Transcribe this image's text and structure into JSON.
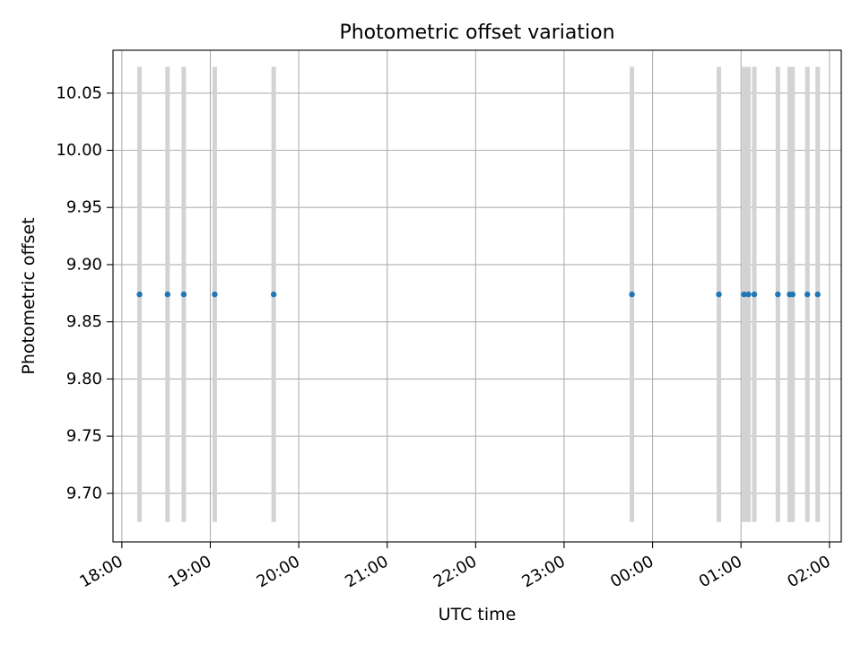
{
  "chart_data": {
    "type": "scatter",
    "title": "Photometric offset variation",
    "xlabel": "UTC time",
    "ylabel": "Photometric offset",
    "xlim": [
      "17:54",
      "02:08"
    ],
    "ylim": [
      9.6575,
      10.0875
    ],
    "x_ticks": [
      "18:00",
      "19:00",
      "20:00",
      "21:00",
      "22:00",
      "23:00",
      "00:00",
      "01:00",
      "02:00"
    ],
    "y_ticks": [
      "9.70",
      "9.75",
      "9.80",
      "9.85",
      "9.90",
      "9.95",
      "10.00",
      "10.05"
    ],
    "grid": true,
    "error_bars": {
      "color": "#d3d3d3",
      "low": 9.675,
      "high": 10.073
    },
    "marker_color": "#1f77b4",
    "points": [
      {
        "x": "18:12",
        "y": 9.874
      },
      {
        "x": "18:31",
        "y": 9.874
      },
      {
        "x": "18:42",
        "y": 9.874
      },
      {
        "x": "19:03",
        "y": 9.874
      },
      {
        "x": "19:43",
        "y": 9.874
      },
      {
        "x": "23:46",
        "y": 9.874
      },
      {
        "x": "00:45",
        "y": 9.874
      },
      {
        "x": "01:02",
        "y": 9.874
      },
      {
        "x": "01:05",
        "y": 9.874
      },
      {
        "x": "01:09",
        "y": 9.874
      },
      {
        "x": "01:25",
        "y": 9.874
      },
      {
        "x": "01:33",
        "y": 9.874
      },
      {
        "x": "01:35",
        "y": 9.874
      },
      {
        "x": "01:45",
        "y": 9.874
      },
      {
        "x": "01:52",
        "y": 9.874
      }
    ]
  }
}
